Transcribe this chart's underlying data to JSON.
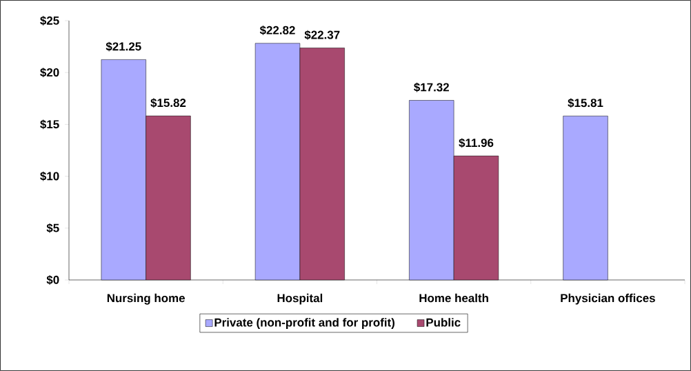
{
  "chart_data": {
    "type": "bar",
    "categories": [
      "Nursing home",
      "Hospital",
      "Home health",
      "Physician offices"
    ],
    "series": [
      {
        "name": "Private (non-profit and for profit)",
        "color": "#a9a9ff",
        "values": [
          21.25,
          22.82,
          17.32,
          15.81
        ],
        "value_labels": [
          "$21.25",
          "$22.82",
          "$17.32",
          "$15.81"
        ]
      },
      {
        "name": "Public",
        "color": "#a8496f",
        "values": [
          15.82,
          22.37,
          11.96,
          null
        ],
        "value_labels": [
          "$15.82",
          "$22.37",
          "$11.96",
          null
        ]
      }
    ],
    "ylim": [
      0,
      25
    ],
    "yticks": [
      {
        "value": 0,
        "label": "$0"
      },
      {
        "value": 5,
        "label": "$5"
      },
      {
        "value": 10,
        "label": "$10"
      },
      {
        "value": 15,
        "label": "$15"
      },
      {
        "value": 20,
        "label": "$20"
      },
      {
        "value": 25,
        "label": "$25"
      }
    ],
    "legend": "bottom"
  }
}
